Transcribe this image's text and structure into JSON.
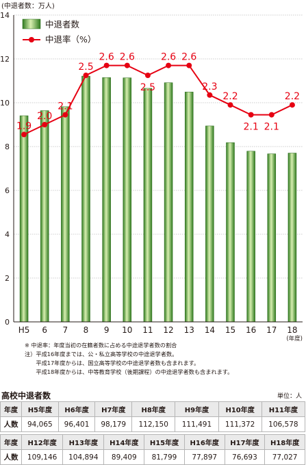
{
  "chart_data": {
    "type": "bar",
    "unit_label": "(中退者数：万人)",
    "categories": [
      "H5",
      "6",
      "7",
      "8",
      "9",
      "10",
      "11",
      "12",
      "13",
      "14",
      "15",
      "16",
      "17",
      "18"
    ],
    "x_suffix": "(年度)",
    "ylim": [
      0,
      14
    ],
    "yticks": [
      "0",
      "2",
      "4",
      "6",
      "8",
      "10",
      "12",
      "14"
    ],
    "grid": true,
    "legend_position": "top-left",
    "series": [
      {
        "name": "中退者数",
        "kind": "bar",
        "color": "#4e9a2f",
        "values": [
          9.4065,
          9.6401,
          9.8179,
          11.215,
          11.1491,
          11.1372,
          10.6578,
          10.9146,
          10.4894,
          8.9409,
          8.1799,
          7.7897,
          7.6693,
          7.7027
        ]
      },
      {
        "name": "中退率（%）",
        "kind": "line",
        "color": "#e60012",
        "values": [
          1.9,
          2.0,
          2.1,
          2.5,
          2.6,
          2.6,
          2.5,
          2.6,
          2.6,
          2.3,
          2.2,
          2.1,
          2.1,
          2.2
        ],
        "labels": [
          "1.9",
          "2.0",
          "2.1",
          "2.5",
          "2.6",
          "2.6",
          "2.5",
          "2.6",
          "2.6",
          "2.3",
          "2.2",
          "2.1",
          "2.1",
          "2.2"
        ]
      }
    ]
  },
  "notes": [
    "※ 中退率：年度当初の在籍者数に占める中途退学者数の割合",
    "注）平成16年度までは、公・私立高等学校の中途退学者数。",
    "　　平成17年度からは、国立高等学校の中途退学者数も含まれます。",
    "　　平成18年度からは、中等教育学校（後期課程）の中途退学者数も含まれます。"
  ],
  "table": {
    "title": "高校中退者数",
    "unit": "単位：人",
    "row_header": "年度",
    "row_label": "人数",
    "part1": {
      "years": [
        "H5年度",
        "H6年度",
        "H7年度",
        "H8年度",
        "H9年度",
        "H10年度",
        "H11年度"
      ],
      "values": [
        "94,065",
        "96,401",
        "98,179",
        "112,150",
        "111,491",
        "111,372",
        "106,578"
      ]
    },
    "part2": {
      "years": [
        "H12年度",
        "H13年度",
        "H14年度",
        "H15年度",
        "H16年度",
        "H17年度",
        "H18年度"
      ],
      "values": [
        "109,146",
        "104,894",
        "89,409",
        "81,799",
        "77,897",
        "76,693",
        "77,027"
      ]
    }
  }
}
